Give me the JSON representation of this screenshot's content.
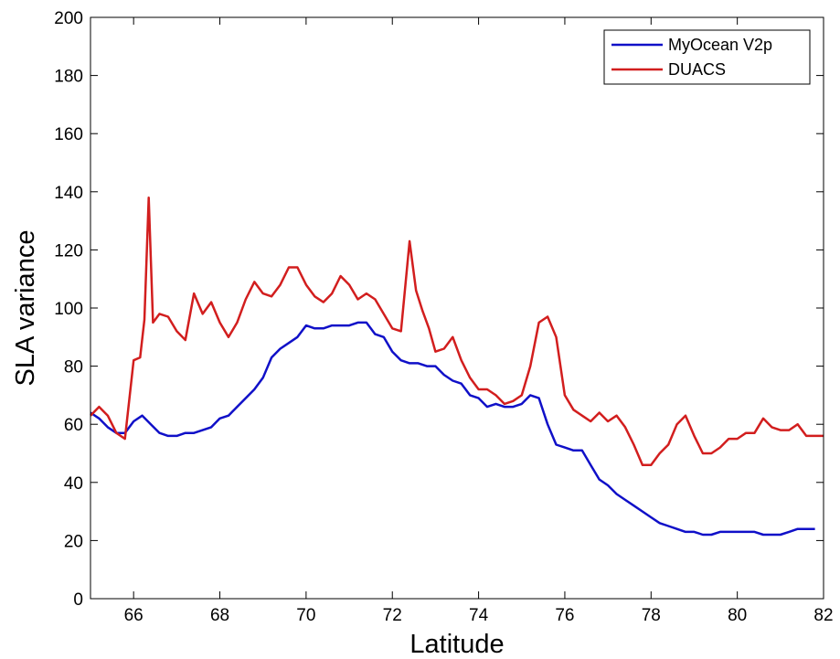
{
  "chart_data": {
    "type": "line",
    "title": "",
    "xlabel": "Latitude",
    "ylabel": "SLA variance",
    "xlim": [
      65,
      82
    ],
    "ylim": [
      0,
      200
    ],
    "xticks": [
      66,
      68,
      70,
      72,
      74,
      76,
      78,
      80,
      82
    ],
    "yticks": [
      0,
      20,
      40,
      60,
      80,
      100,
      120,
      140,
      160,
      180,
      200
    ],
    "grid": false,
    "legend_position": "top-right",
    "series": [
      {
        "name": "MyOcean V2p",
        "color": "#1010c8",
        "x": [
          65.0,
          65.2,
          65.4,
          65.6,
          65.8,
          66.0,
          66.2,
          66.4,
          66.6,
          66.8,
          67.0,
          67.2,
          67.4,
          67.6,
          67.8,
          68.0,
          68.2,
          68.4,
          68.6,
          68.8,
          69.0,
          69.2,
          69.4,
          69.6,
          69.8,
          70.0,
          70.2,
          70.4,
          70.6,
          70.8,
          71.0,
          71.2,
          71.4,
          71.6,
          71.8,
          72.0,
          72.2,
          72.4,
          72.6,
          72.8,
          73.0,
          73.2,
          73.4,
          73.6,
          73.8,
          74.0,
          74.2,
          74.4,
          74.6,
          74.8,
          75.0,
          75.2,
          75.4,
          75.6,
          75.8,
          76.0,
          76.2,
          76.4,
          76.6,
          76.8,
          77.0,
          77.2,
          77.4,
          77.6,
          77.8,
          78.0,
          78.2,
          78.4,
          78.6,
          78.8,
          79.0,
          79.2,
          79.4,
          79.6,
          79.8,
          80.0,
          80.2,
          80.4,
          80.6,
          80.8,
          81.0,
          81.2,
          81.4,
          81.6,
          81.8
        ],
        "y": [
          64,
          62,
          59,
          57,
          57,
          61,
          63,
          60,
          57,
          56,
          56,
          57,
          57,
          58,
          59,
          62,
          63,
          66,
          69,
          72,
          76,
          83,
          86,
          88,
          90,
          94,
          93,
          93,
          94,
          94,
          94,
          95,
          95,
          91,
          90,
          85,
          82,
          81,
          81,
          80,
          80,
          77,
          75,
          74,
          70,
          69,
          66,
          67,
          66,
          66,
          67,
          70,
          69,
          60,
          53,
          52,
          51,
          51,
          46,
          41,
          39,
          36,
          34,
          32,
          30,
          28,
          26,
          25,
          24,
          23,
          23,
          22,
          22,
          23,
          23,
          23,
          23,
          23,
          22,
          22,
          22,
          23,
          24,
          24,
          24
        ]
      },
      {
        "name": "DUACS",
        "color": "#d21e1e",
        "x": [
          65.0,
          65.2,
          65.4,
          65.6,
          65.8,
          66.0,
          66.15,
          66.25,
          66.35,
          66.45,
          66.6,
          66.8,
          67.0,
          67.2,
          67.4,
          67.6,
          67.8,
          68.0,
          68.2,
          68.4,
          68.6,
          68.8,
          69.0,
          69.2,
          69.4,
          69.6,
          69.8,
          70.0,
          70.2,
          70.4,
          70.6,
          70.8,
          71.0,
          71.2,
          71.4,
          71.6,
          71.8,
          72.0,
          72.2,
          72.4,
          72.55,
          72.7,
          72.85,
          73.0,
          73.2,
          73.4,
          73.6,
          73.8,
          74.0,
          74.2,
          74.4,
          74.6,
          74.8,
          75.0,
          75.2,
          75.4,
          75.6,
          75.8,
          76.0,
          76.2,
          76.4,
          76.6,
          76.8,
          77.0,
          77.2,
          77.4,
          77.6,
          77.8,
          78.0,
          78.2,
          78.4,
          78.6,
          78.8,
          79.0,
          79.2,
          79.4,
          79.6,
          79.8,
          80.0,
          80.2,
          80.4,
          80.6,
          80.8,
          81.0,
          81.2,
          81.4,
          81.6,
          81.8,
          82.0
        ],
        "y": [
          63,
          66,
          63,
          57,
          55,
          82,
          83,
          96,
          138,
          95,
          98,
          97,
          92,
          89,
          105,
          98,
          102,
          95,
          90,
          95,
          103,
          109,
          105,
          104,
          108,
          114,
          114,
          108,
          104,
          102,
          105,
          111,
          108,
          103,
          105,
          103,
          98,
          93,
          92,
          123,
          106,
          99,
          93,
          85,
          86,
          90,
          82,
          76,
          72,
          72,
          70,
          67,
          68,
          70,
          80,
          95,
          97,
          90,
          70,
          65,
          63,
          61,
          64,
          61,
          63,
          59,
          53,
          46,
          46,
          50,
          53,
          60,
          63,
          56,
          50,
          50,
          52,
          55,
          55,
          57,
          57,
          62,
          59,
          58,
          58,
          60,
          56,
          56,
          56
        ]
      }
    ]
  }
}
